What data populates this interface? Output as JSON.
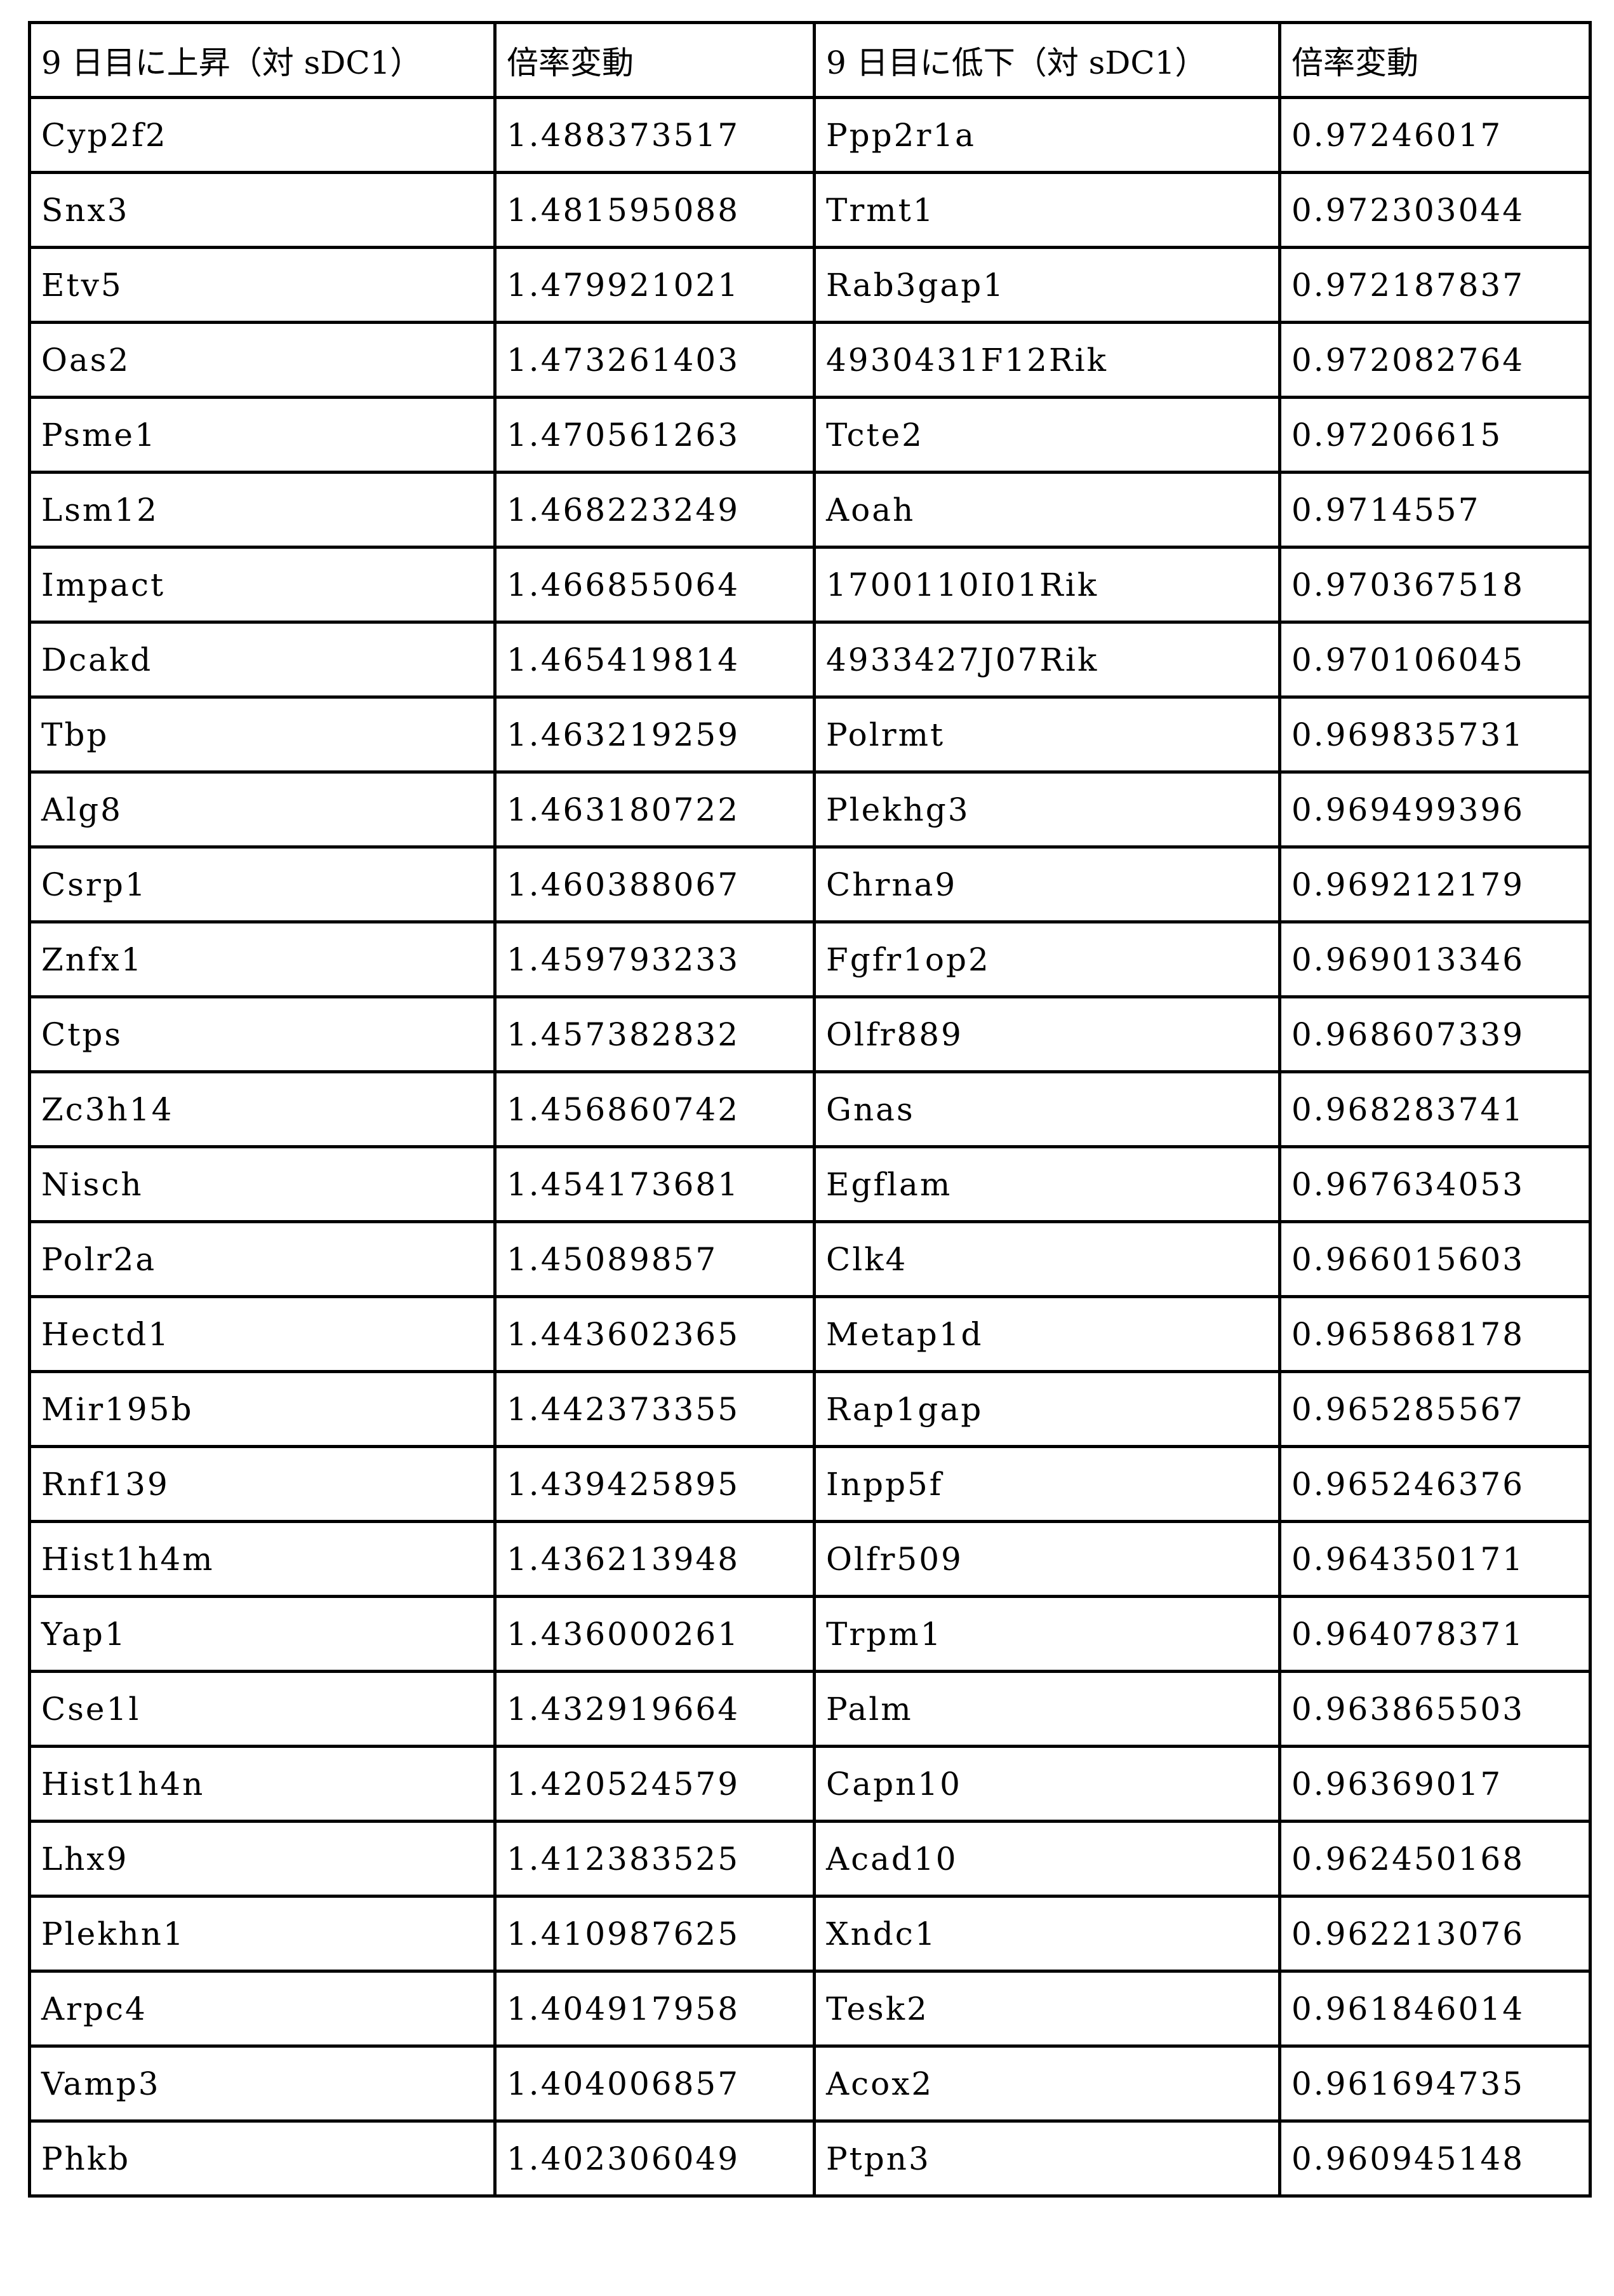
{
  "header": [
    "9 日目に上昇（対 sDC1）",
    "倍率変動",
    "9 日目に低下（対 sDC1）",
    "倍率変動"
  ],
  "rows": [
    [
      "Cyp2f2",
      "1.488373517",
      "Ppp2r1a",
      "0.97246017"
    ],
    [
      "Snx3",
      "1.481595088",
      "Trmt1",
      "0.972303044"
    ],
    [
      "Etv5",
      "1.479921021",
      "Rab3gap1",
      "0.972187837"
    ],
    [
      "Oas2",
      "1.473261403",
      "4930431F12Rik",
      "0.972082764"
    ],
    [
      "Psme1",
      "1.470561263",
      "Tcte2",
      "0.97206615"
    ],
    [
      "Lsm12",
      "1.468223249",
      "Aoah",
      "0.9714557"
    ],
    [
      "Impact",
      "1.466855064",
      "1700110I01Rik",
      "0.970367518"
    ],
    [
      "Dcakd",
      "1.465419814",
      "4933427J07Rik",
      "0.970106045"
    ],
    [
      "Tbp",
      "1.463219259",
      "Polrmt",
      "0.969835731"
    ],
    [
      "Alg8",
      "1.463180722",
      "Plekhg3",
      "0.969499396"
    ],
    [
      "Csrp1",
      "1.460388067",
      "Chrna9",
      "0.969212179"
    ],
    [
      "Znfx1",
      "1.459793233",
      "Fgfr1op2",
      "0.969013346"
    ],
    [
      "Ctps",
      "1.457382832",
      "Olfr889",
      "0.968607339"
    ],
    [
      "Zc3h14",
      "1.456860742",
      "Gnas",
      "0.968283741"
    ],
    [
      "Nisch",
      "1.454173681",
      "Egflam",
      "0.967634053"
    ],
    [
      "Polr2a",
      "1.45089857",
      "Clk4",
      "0.966015603"
    ],
    [
      "Hectd1",
      "1.443602365",
      "Metap1d",
      "0.965868178"
    ],
    [
      "Mir195b",
      "1.442373355",
      "Rap1gap",
      "0.965285567"
    ],
    [
      "Rnf139",
      "1.439425895",
      "Inpp5f",
      "0.965246376"
    ],
    [
      "Hist1h4m",
      "1.436213948",
      "Olfr509",
      "0.964350171"
    ],
    [
      "Yap1",
      "1.436000261",
      "Trpm1",
      "0.964078371"
    ],
    [
      "Cse1l",
      "1.432919664",
      "Palm",
      "0.963865503"
    ],
    [
      "Hist1h4n",
      "1.420524579",
      "Capn10",
      "0.96369017"
    ],
    [
      "Lhx9",
      "1.412383525",
      "Acad10",
      "0.962450168"
    ],
    [
      "Plekhn1",
      "1.410987625",
      "Xndc1",
      "0.962213076"
    ],
    [
      "Arpc4",
      "1.404917958",
      "Tesk2",
      "0.961846014"
    ],
    [
      "Vamp3",
      "1.404006857",
      "Acox2",
      "0.961694735"
    ],
    [
      "Phkb",
      "1.402306049",
      "Ptpn3",
      "0.960945148"
    ]
  ]
}
